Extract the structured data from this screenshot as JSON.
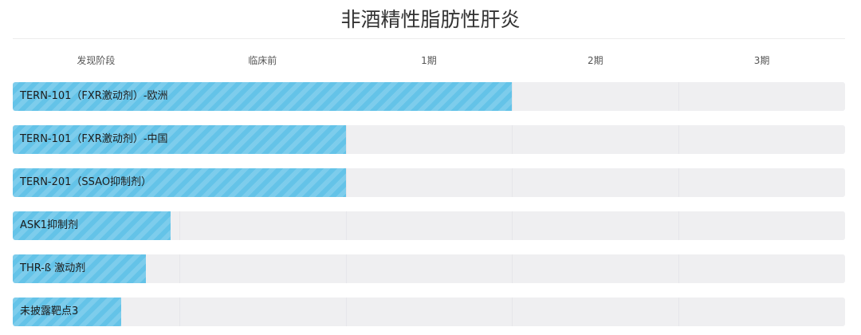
{
  "chart_data": {
    "type": "bar",
    "orientation": "horizontal",
    "title": "非酒精性脂肪性肝炎",
    "stages": [
      "发现阶段",
      "临床前",
      "1期",
      "2期",
      "3期"
    ],
    "categories": [
      "TERN-101（FXR激动剂）-欧洲",
      "TERN-101（FXR激动剂）-中国",
      "TERN-201（SSAO抑制剂）",
      "ASK1抑制剂",
      "THR-ß 激动剂",
      "未披露靶点3"
    ],
    "values": [
      3.0,
      2.0,
      2.0,
      0.95,
      0.8,
      0.65
    ],
    "xlim": [
      0,
      5
    ],
    "bar_color": "#64c3e8",
    "track_color": "#efeff1",
    "grid": false
  }
}
